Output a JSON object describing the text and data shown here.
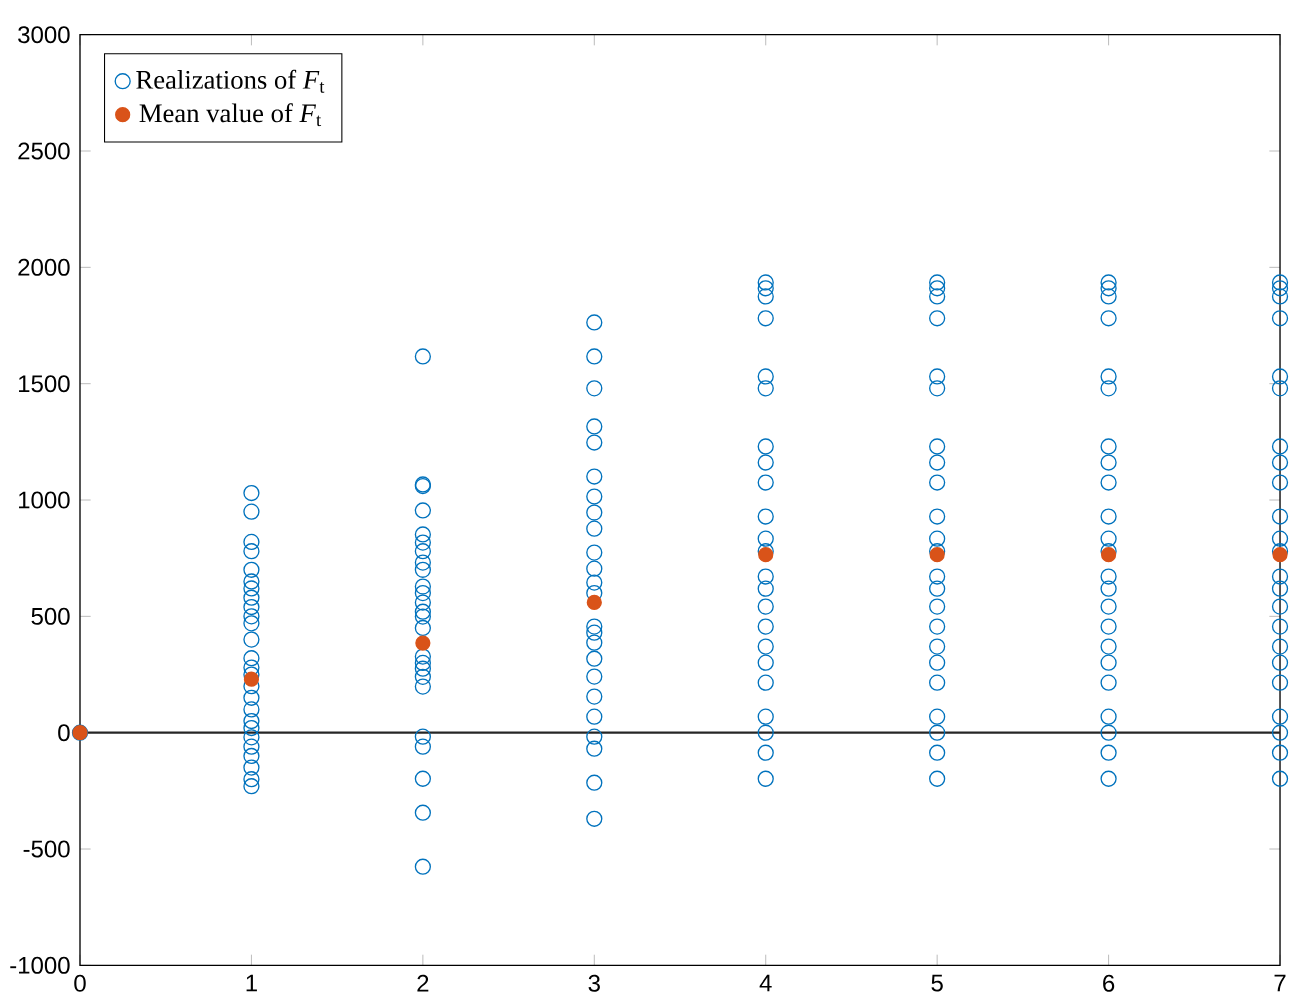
{
  "chart_data": {
    "type": "scatter",
    "series": [
      {
        "name": "Realizations of *F*$_{t}$",
        "color": "#0072bd",
        "x": [
          0,
          1,
          1,
          1,
          1,
          1,
          1,
          1,
          1,
          1,
          1,
          1,
          1,
          1,
          1,
          1,
          1,
          1,
          1,
          1,
          1,
          1,
          1,
          1,
          1,
          1,
          1,
          2,
          2,
          2,
          2,
          2,
          2,
          2,
          2,
          2,
          2,
          2,
          2,
          2,
          2,
          2,
          2,
          2,
          2,
          2,
          2,
          2,
          2,
          2,
          2,
          2,
          3,
          3,
          3,
          3,
          3,
          3,
          3,
          3,
          3,
          3,
          3,
          3,
          3,
          3,
          3,
          3,
          3,
          3,
          3,
          3,
          3,
          3,
          3,
          3,
          4,
          4,
          4,
          4,
          4,
          4,
          4,
          4,
          4,
          4,
          4,
          4,
          4,
          4,
          4,
          4,
          4,
          4,
          4,
          4,
          4,
          4,
          4,
          5,
          5,
          5,
          5,
          5,
          5,
          5,
          5,
          5,
          5,
          5,
          5,
          5,
          5,
          5,
          5,
          5,
          5,
          5,
          5,
          5,
          5,
          5,
          6,
          6,
          6,
          6,
          6,
          6,
          6,
          6,
          6,
          6,
          6,
          6,
          6,
          6,
          6,
          6,
          6,
          6,
          6,
          6,
          6,
          6,
          6,
          7,
          7,
          7,
          7,
          7,
          7,
          7,
          7,
          7,
          7,
          7,
          7,
          7,
          7,
          7,
          7,
          7,
          7,
          7,
          7,
          7,
          7,
          7
        ],
        "values": [
          0,
          1030,
          950,
          820,
          780,
          700,
          650,
          620,
          580,
          540,
          500,
          470,
          400,
          320,
          280,
          250,
          200,
          150,
          100,
          50,
          20,
          -20,
          -60,
          -100,
          -150,
          -200,
          -230,
          1617,
          1067,
          1060,
          955,
          852,
          817,
          780,
          731,
          700,
          628,
          600,
          559,
          520,
          499,
          450,
          327,
          300,
          275,
          240,
          198,
          -17,
          -60,
          -198,
          -344,
          -576,
          1763,
          1617,
          1480,
          1316,
          1247,
          1101,
          1015,
          946,
          877,
          774,
          705,
          645,
          600,
          456,
          430,
          387,
          318,
          241,
          155,
          69,
          -17,
          -69,
          -215,
          -370,
          1935,
          1910,
          1875,
          1781,
          1531,
          1480,
          1230,
          1161,
          1075,
          929,
          834,
          780,
          671,
          619,
          542,
          456,
          370,
          301,
          215,
          69,
          0,
          -86,
          -198,
          1935,
          1910,
          1875,
          1781,
          1531,
          1480,
          1230,
          1161,
          1075,
          929,
          834,
          780,
          671,
          619,
          542,
          456,
          370,
          301,
          215,
          69,
          0,
          -86,
          -198,
          1935,
          1910,
          1875,
          1781,
          1531,
          1480,
          1230,
          1161,
          1075,
          929,
          834,
          780,
          671,
          619,
          542,
          456,
          370,
          301,
          215,
          69,
          0,
          -86,
          -198,
          1935,
          1910,
          1875,
          1781,
          1531,
          1480,
          1230,
          1161,
          1075,
          929,
          834,
          780,
          671,
          619,
          542,
          456,
          370,
          301,
          215,
          69,
          0,
          -86,
          -198
        ]
      },
      {
        "name": "Mean value of *F*$_{t}$",
        "color": "#d95319",
        "x": [
          0,
          1,
          2,
          3,
          4,
          5,
          6,
          7
        ],
        "values": [
          0,
          230,
          385,
          560,
          765,
          765,
          765,
          765
        ]
      }
    ],
    "xlim": [
      0,
      7
    ],
    "xticks": [
      0,
      1,
      2,
      3,
      4,
      5,
      6,
      7
    ],
    "ylim": [
      -1000,
      3000
    ],
    "yticks": [
      -1000,
      -500,
      0,
      500,
      1000,
      1500,
      2000,
      2500,
      3000
    ],
    "ref_lines": [
      {
        "axis": "y",
        "value": 0,
        "color": "#262626"
      }
    ],
    "grid": false,
    "legend": "top left",
    "marker": "circle"
  }
}
